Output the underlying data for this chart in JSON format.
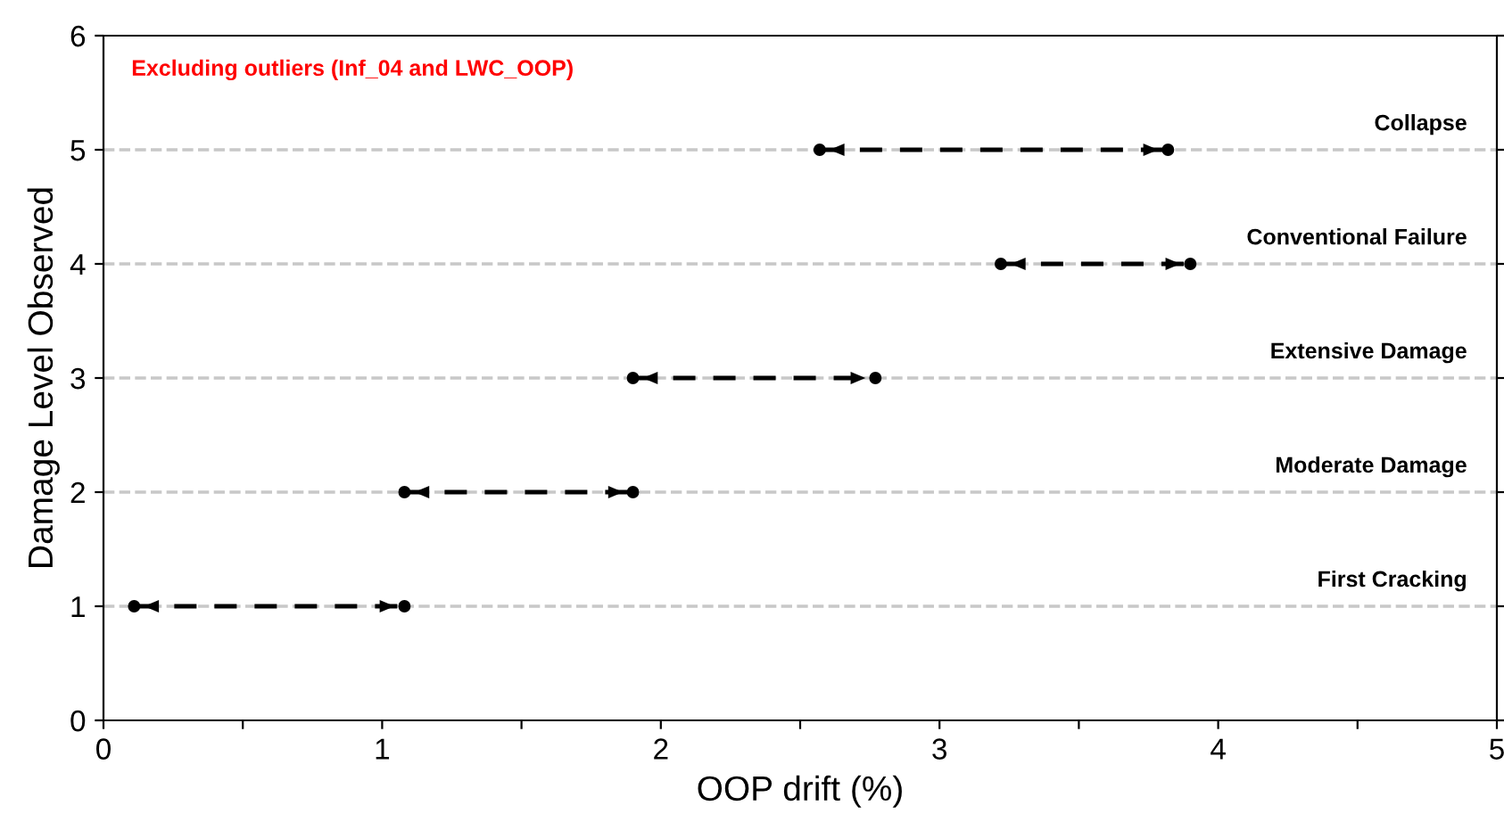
{
  "chart_data": {
    "type": "line",
    "xlabel": "OOP drift (%)",
    "ylabel": "Damage Level Observed",
    "annotations": [
      "Excluding outliers (Inf_04 and LWC_OOP)"
    ],
    "series": [
      {
        "color": "#000000",
        "x": [
          0.11,
          1.08
        ],
        "values": [
          1,
          1
        ]
      },
      {
        "color": "#000000",
        "x": [
          1.08,
          1.9
        ],
        "values": [
          2,
          2
        ]
      },
      {
        "color": "#000000",
        "x": [
          1.9,
          2.77
        ],
        "values": [
          3,
          3
        ]
      },
      {
        "color": "#000000",
        "x": [
          3.22,
          3.9
        ],
        "values": [
          4,
          4
        ]
      },
      {
        "color": "#000000",
        "x": [
          2.57,
          3.82
        ],
        "values": [
          5,
          5
        ]
      }
    ],
    "ref_lines": [
      {
        "axis": "y",
        "value": 1,
        "label": "First Cracking",
        "color": "#c8c8c8",
        "line_style": "dashed"
      },
      {
        "axis": "y",
        "value": 2,
        "label": "Moderate Damage",
        "color": "#c8c8c8",
        "line_style": "dashed"
      },
      {
        "axis": "y",
        "value": 3,
        "label": "Extensive Damage",
        "color": "#c8c8c8",
        "line_style": "dashed"
      },
      {
        "axis": "y",
        "value": 4,
        "label": "Conventional Failure",
        "color": "#c8c8c8",
        "line_style": "dashed"
      },
      {
        "axis": "y",
        "value": 5,
        "label": "Collapse",
        "color": "#c8c8c8",
        "line_style": "dashed"
      }
    ],
    "xlim": [
      0,
      5
    ],
    "xticks": [
      0,
      {
        "value": 0.5,
        "label": null
      },
      1,
      {
        "value": 1.5,
        "label": null
      },
      2,
      {
        "value": 2.5,
        "label": null
      },
      3,
      {
        "value": 3.5,
        "label": null
      },
      4,
      {
        "value": 4.5,
        "label": null
      },
      5
    ],
    "ylim": [
      0,
      6
    ],
    "yticks": [
      0,
      1,
      2,
      3,
      4,
      5,
      6
    ],
    "marker": "circle",
    "line_style": "dashed",
    "grid": false,
    "legend": false
  }
}
